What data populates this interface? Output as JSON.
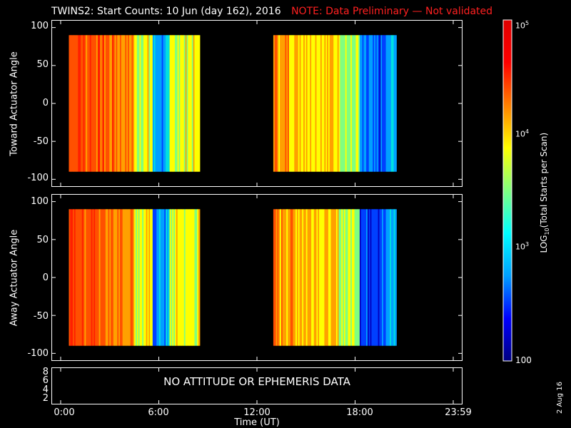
{
  "title": "TWINS2: Start Counts: 10 Jun (day 162), 2016",
  "note": "NOTE: Data Preliminary — Not validated",
  "date_stamp": "2 Aug 16",
  "no_data_text": "NO ATTITUDE OR EPHEMERIS DATA",
  "chart_data": [
    {
      "type": "heatmap",
      "ylabel": "Toward Actuator Angle",
      "ylim": [
        -110,
        110
      ],
      "y_ticks": [
        "100",
        "50",
        "0",
        "-50",
        "-100"
      ],
      "xlim_hours": [
        0,
        24
      ],
      "data_blocks_hours": [
        [
          0.5,
          8.5
        ],
        [
          13.0,
          20.5
        ]
      ],
      "angle_range": [
        -90,
        90
      ]
    },
    {
      "type": "heatmap",
      "ylabel": "Away Actuator Angle",
      "ylim": [
        -110,
        110
      ],
      "y_ticks": [
        "100",
        "50",
        "0",
        "-50",
        "-100"
      ],
      "xlim_hours": [
        0,
        24
      ],
      "data_blocks_hours": [
        [
          0.5,
          8.5
        ],
        [
          13.0,
          20.5
        ]
      ],
      "angle_range": [
        -90,
        90
      ]
    },
    {
      "type": "line",
      "ylim": [
        1.5,
        8.5
      ],
      "y_ticks": [
        "8",
        "6",
        "4",
        "2"
      ],
      "xlim_hours": [
        0,
        24
      ]
    }
  ],
  "x_axis": {
    "title": "Time (UT)",
    "ticks": [
      "0:00",
      "6:00",
      "12:00",
      "18:00",
      "23:59"
    ]
  },
  "colorbar": {
    "label": "LOG10(Total Starts per Scan)",
    "ticks": [
      "10^5",
      "10^4",
      "10^3",
      "100"
    ],
    "colors": [
      "#000080",
      "#0000ff",
      "#00a0ff",
      "#00ffff",
      "#80ff80",
      "#ffff00",
      "#ff8000",
      "#ff0000",
      "#e00000"
    ]
  }
}
